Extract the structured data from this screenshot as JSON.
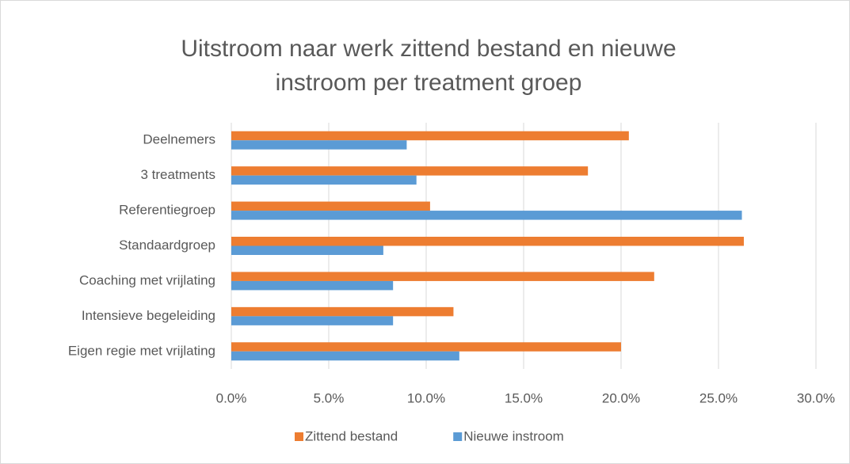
{
  "chart_data": {
    "type": "hbar",
    "title": "Uitstroom naar werk zittend bestand en nieuwe instroom per treatment groep",
    "categories": [
      "Deelnemers",
      "3 treatments",
      "Referentiegroep",
      "Standaardgroep",
      "Coaching met vrijlating",
      "Intensieve begeleiding",
      "Eigen regie met vrijlating"
    ],
    "series": [
      {
        "name": "Zittend bestand",
        "color": "#ed7d31",
        "values": [
          20.4,
          18.3,
          10.2,
          26.3,
          21.7,
          11.4,
          20.0
        ]
      },
      {
        "name": "Nieuwe instroom",
        "color": "#5b9bd5",
        "values": [
          9.0,
          9.5,
          26.2,
          7.8,
          8.3,
          8.3,
          11.7
        ]
      }
    ],
    "xlim": [
      0,
      30
    ],
    "xticks": [
      {
        "value": 0,
        "label": "0.0%"
      },
      {
        "value": 5,
        "label": "5.0%"
      },
      {
        "value": 10,
        "label": "10.0%"
      },
      {
        "value": 15,
        "label": "15.0%"
      },
      {
        "value": 20,
        "label": "20.0%"
      },
      {
        "value": 25,
        "label": "25.0%"
      },
      {
        "value": 30,
        "label": "30.0%"
      }
    ],
    "grid": true,
    "legend": "bottom"
  }
}
